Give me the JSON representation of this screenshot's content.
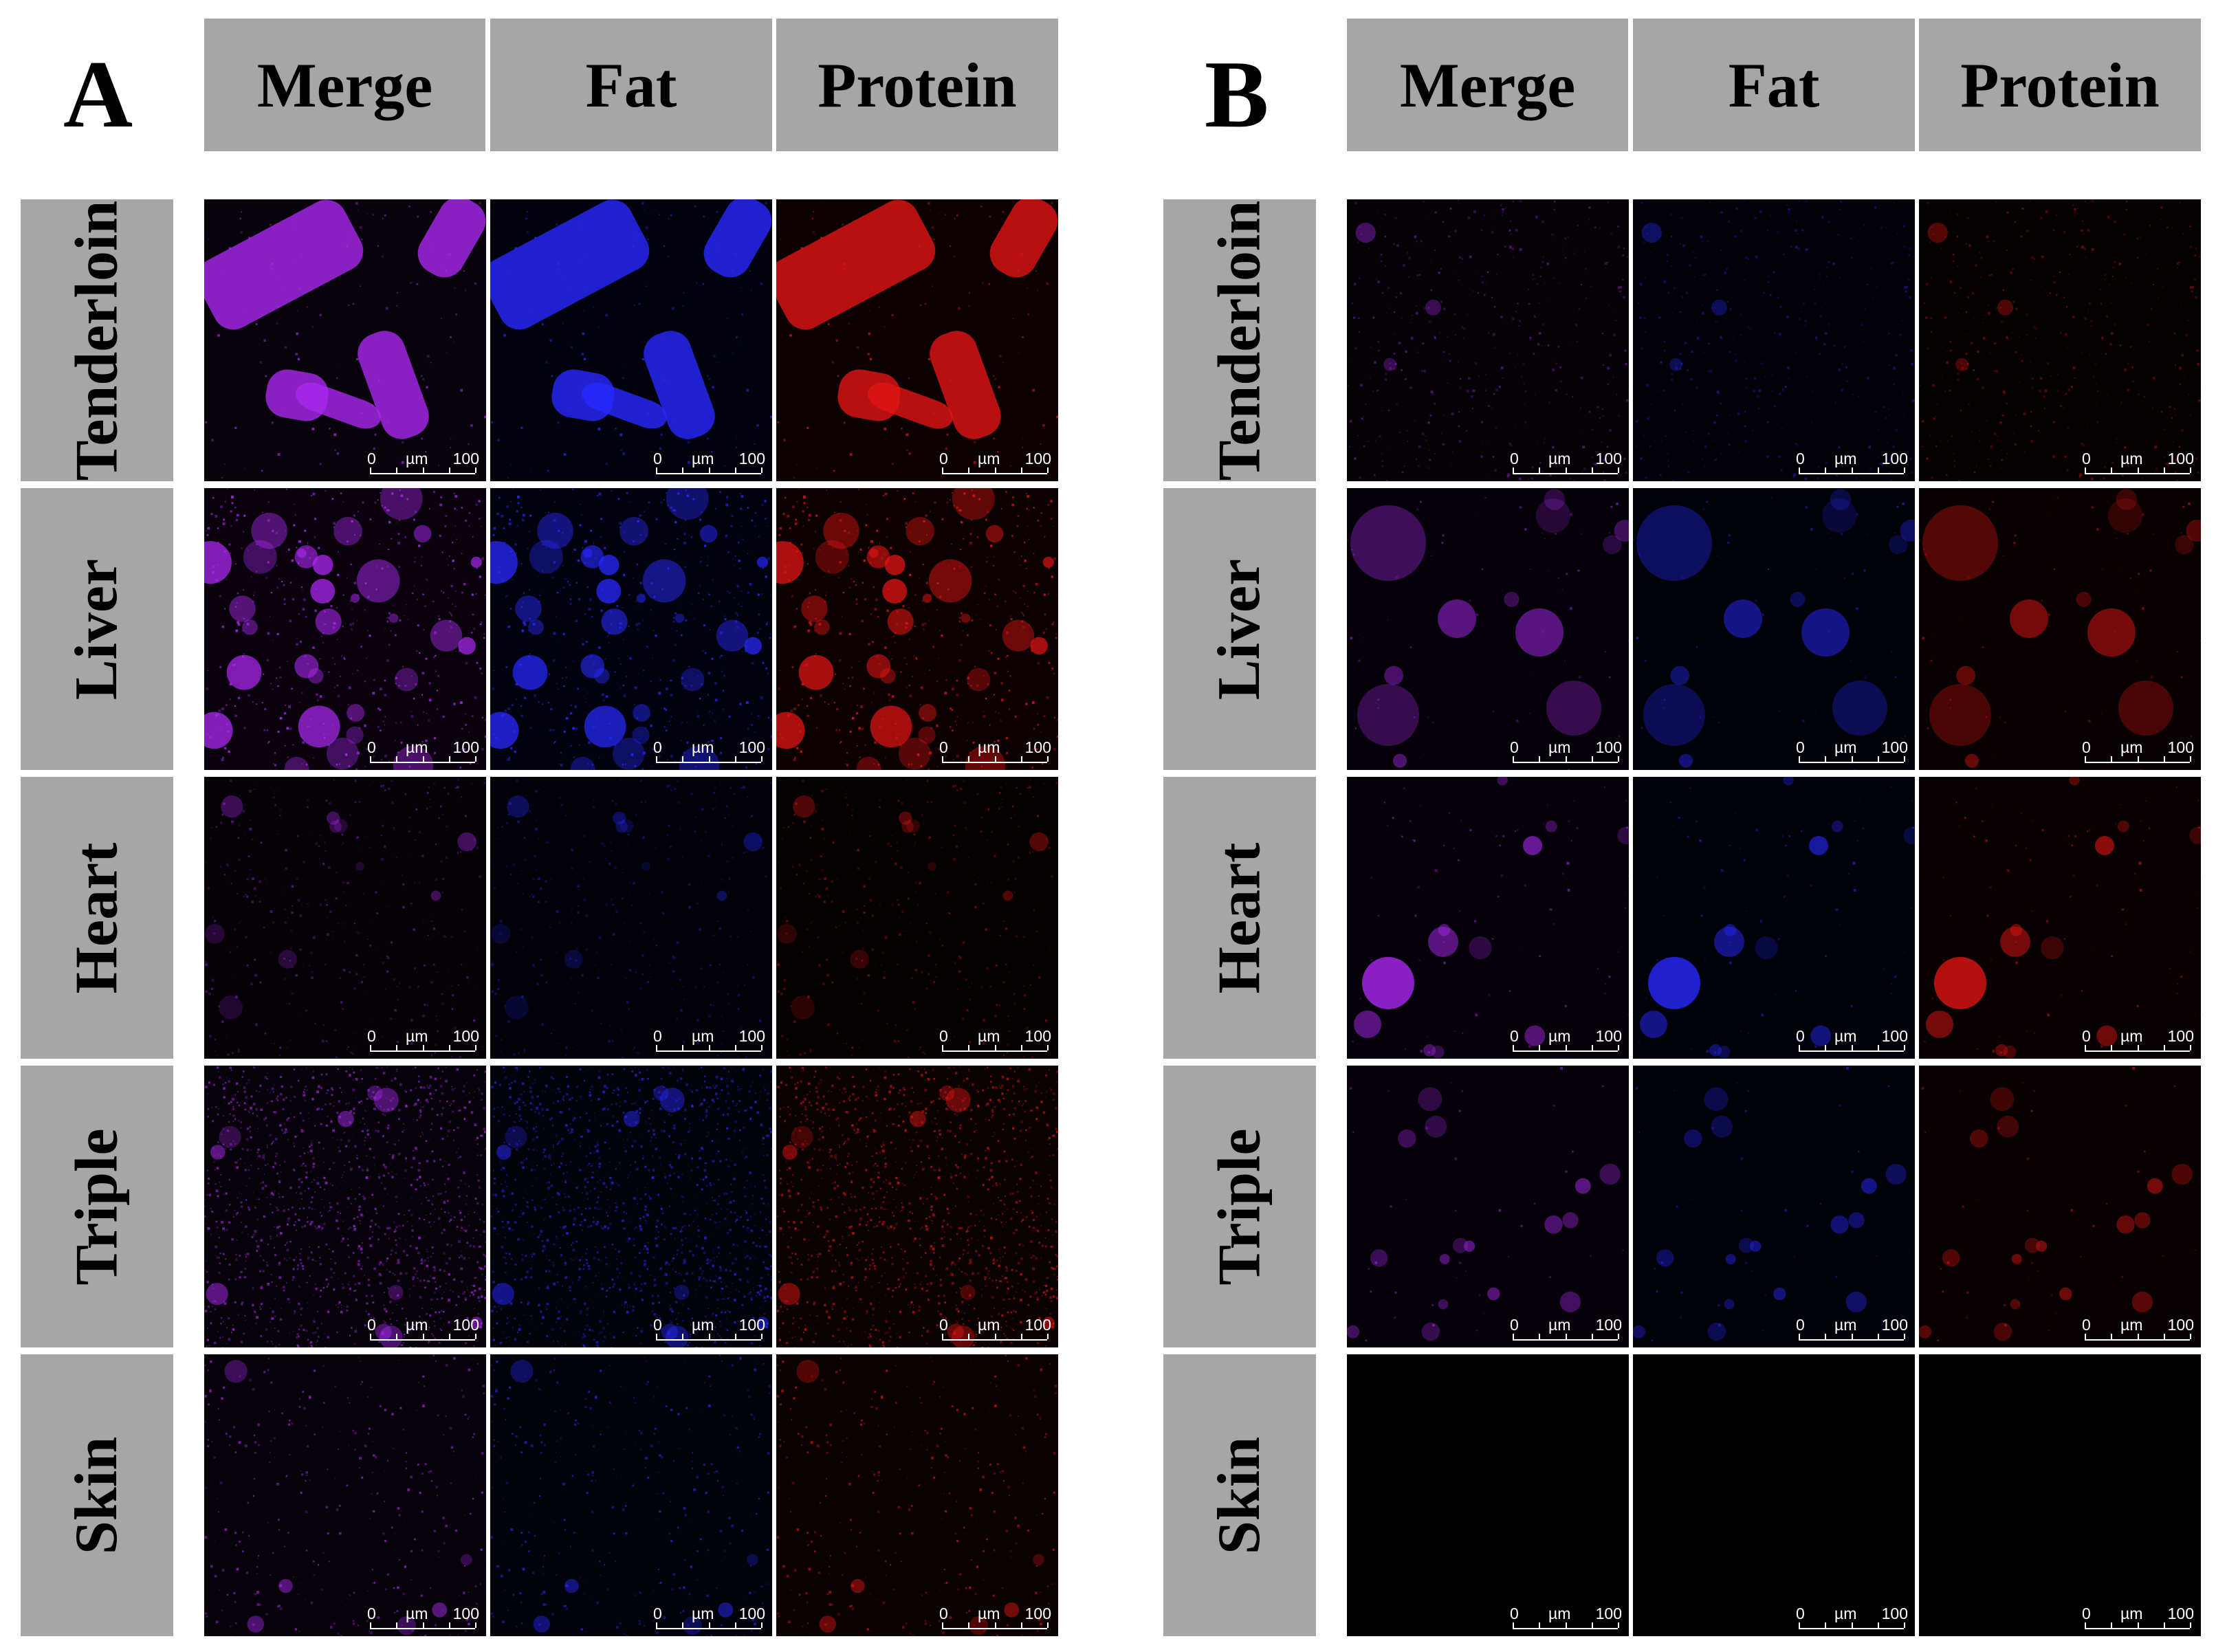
{
  "panels": [
    {
      "letter": "A",
      "headers": [
        "Merge",
        "Fat",
        "Protein"
      ],
      "rows": [
        "Tenderloin",
        "Liver",
        "Heart",
        "Triple",
        "Skin"
      ]
    },
    {
      "letter": "B",
      "headers": [
        "Merge",
        "Fat",
        "Protein"
      ],
      "rows": [
        "Tenderloin",
        "Liver",
        "Heart",
        "Triple",
        "Skin"
      ]
    }
  ],
  "scale_bar": {
    "start": "0",
    "unit": "µm",
    "end": "100"
  },
  "channel_colors": {
    "merge": "#a020f0",
    "fat": "#2a2aff",
    "protein": "#e01010",
    "background": "#000000"
  }
}
